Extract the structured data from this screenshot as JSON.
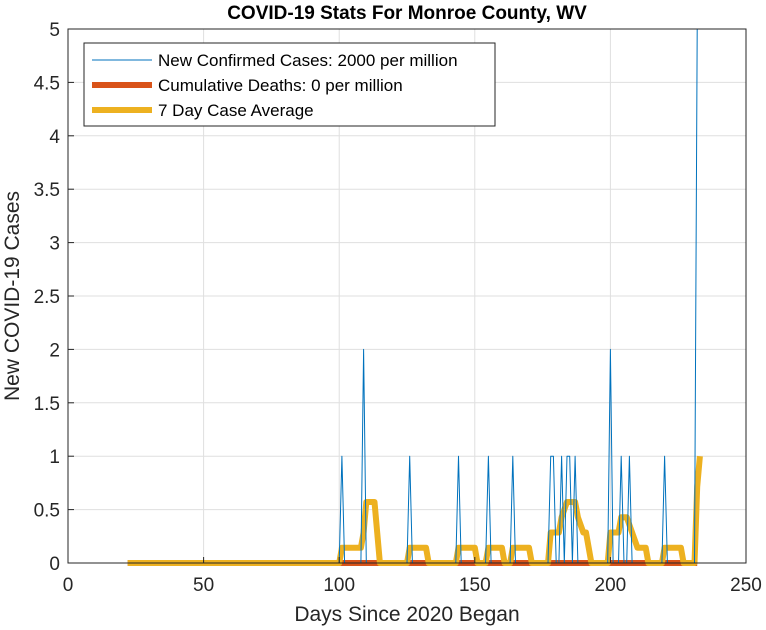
{
  "chart_data": {
    "type": "line",
    "title": "COVID-19 Stats For Monroe County, WV",
    "xlabel": "Days Since 2020 Began",
    "ylabel": "New COVID-19 Cases",
    "xlim": [
      0,
      250
    ],
    "ylim": [
      0,
      5
    ],
    "xticks": [
      "0",
      "50",
      "100",
      "150",
      "200",
      "250"
    ],
    "yticks": [
      "0",
      "0.5",
      "1",
      "1.5",
      "2",
      "2.5",
      "3",
      "3.5",
      "4",
      "4.5",
      "5"
    ],
    "grid": true,
    "legend_position": "top-left",
    "series": [
      {
        "name": "New Confirmed Cases: 2000 per million",
        "color": "#0072BD",
        "line_width": "thin",
        "points": [
          [
            22,
            0
          ],
          [
            100,
            0
          ],
          [
            101,
            1
          ],
          [
            102,
            0
          ],
          [
            108,
            0
          ],
          [
            109,
            2
          ],
          [
            110,
            0
          ],
          [
            125,
            0
          ],
          [
            126,
            1
          ],
          [
            127,
            0
          ],
          [
            143,
            0
          ],
          [
            144,
            1
          ],
          [
            145,
            0
          ],
          [
            154,
            0
          ],
          [
            155,
            1
          ],
          [
            156,
            0
          ],
          [
            163,
            0
          ],
          [
            164,
            1
          ],
          [
            165,
            0
          ],
          [
            177,
            0
          ],
          [
            178,
            1
          ],
          [
            179,
            1
          ],
          [
            180,
            0
          ],
          [
            181,
            0
          ],
          [
            182,
            1
          ],
          [
            183,
            0
          ],
          [
            184,
            1
          ],
          [
            185,
            1
          ],
          [
            186,
            0
          ],
          [
            187,
            1
          ],
          [
            188,
            0
          ],
          [
            199,
            0
          ],
          [
            200,
            2
          ],
          [
            201,
            0
          ],
          [
            203,
            0
          ],
          [
            204,
            1
          ],
          [
            205,
            0
          ],
          [
            206,
            0
          ],
          [
            207,
            1
          ],
          [
            208,
            0
          ],
          [
            219,
            0
          ],
          [
            220,
            1
          ],
          [
            221,
            0
          ],
          [
            231,
            0
          ],
          [
            232,
            5
          ]
        ]
      },
      {
        "name": "Cumulative Deaths: 0 per million",
        "color": "#D95319",
        "line_width": "thick",
        "points": [
          [
            22,
            0
          ],
          [
            232,
            0
          ]
        ]
      },
      {
        "name": "7 Day Case Average",
        "color": "#EDB120",
        "line_width": "thick",
        "points": [
          [
            22,
            0
          ],
          [
            100,
            0
          ],
          [
            101,
            0.143
          ],
          [
            108,
            0.143
          ],
          [
            109,
            0.286
          ],
          [
            110,
            0.571
          ],
          [
            113,
            0.571
          ],
          [
            114,
            0.286
          ],
          [
            115,
            0
          ],
          [
            125,
            0
          ],
          [
            126,
            0.143
          ],
          [
            132,
            0.143
          ],
          [
            133,
            0
          ],
          [
            143,
            0
          ],
          [
            144,
            0.143
          ],
          [
            150,
            0.143
          ],
          [
            151,
            0
          ],
          [
            154,
            0
          ],
          [
            155,
            0.143
          ],
          [
            160,
            0.143
          ],
          [
            161,
            0
          ],
          [
            163,
            0
          ],
          [
            164,
            0.143
          ],
          [
            170,
            0.143
          ],
          [
            171,
            0
          ],
          [
            177,
            0
          ],
          [
            178,
            0.286
          ],
          [
            181,
            0.286
          ],
          [
            182,
            0.429
          ],
          [
            184,
            0.571
          ],
          [
            187,
            0.571
          ],
          [
            188,
            0.429
          ],
          [
            190,
            0.286
          ],
          [
            191,
            0.286
          ],
          [
            192,
            0.143
          ],
          [
            193,
            0
          ],
          [
            199,
            0
          ],
          [
            200,
            0.286
          ],
          [
            203,
            0.286
          ],
          [
            204,
            0.429
          ],
          [
            206,
            0.429
          ],
          [
            208,
            0.286
          ],
          [
            210,
            0.143
          ],
          [
            213,
            0.143
          ],
          [
            214,
            0
          ],
          [
            219,
            0
          ],
          [
            220,
            0.143
          ],
          [
            226,
            0.143
          ],
          [
            227,
            0
          ],
          [
            231,
            0
          ],
          [
            232,
            0.714
          ],
          [
            233,
            1
          ]
        ]
      }
    ]
  }
}
